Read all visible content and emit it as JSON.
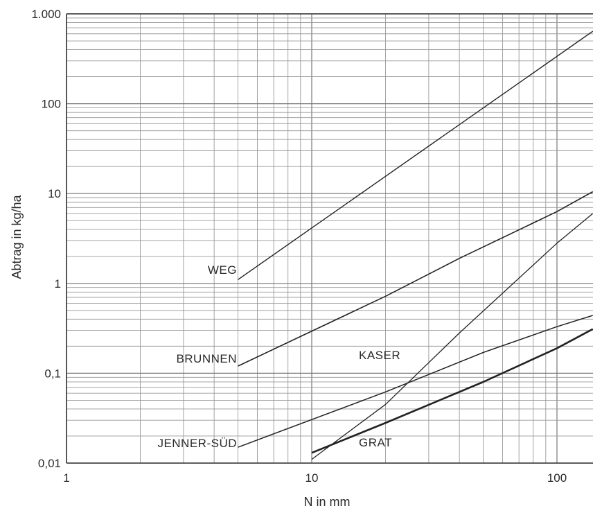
{
  "chart_data": {
    "type": "line",
    "title": "",
    "xlabel": "N in mm",
    "ylabel": "Abtrag in kg/ha",
    "x_scale": "log",
    "y_scale": "log",
    "xlim": [
      1,
      140
    ],
    "ylim": [
      0.01,
      1000
    ],
    "grid": true,
    "legend": "none",
    "x_ticks": [
      {
        "value": 1,
        "label": "1"
      },
      {
        "value": 10,
        "label": "10"
      },
      {
        "value": 100,
        "label": "100"
      }
    ],
    "y_ticks": [
      {
        "value": 0.01,
        "label": "0,01"
      },
      {
        "value": 0.1,
        "label": "0,1"
      },
      {
        "value": 1,
        "label": "1"
      },
      {
        "value": 10,
        "label": "10"
      },
      {
        "value": 100,
        "label": "100"
      },
      {
        "value": 1000,
        "label": "1.000"
      }
    ],
    "series": [
      {
        "name": "WEG",
        "x": [
          5,
          140
        ],
        "y": [
          1.1,
          640
        ]
      },
      {
        "name": "BRUNNEN",
        "x": [
          5,
          20,
          40,
          100,
          140
        ],
        "y": [
          0.12,
          0.72,
          1.9,
          6.3,
          10.5
        ]
      },
      {
        "name": "KASER",
        "x": [
          10,
          20,
          40,
          100,
          140
        ],
        "y": [
          0.011,
          0.045,
          0.28,
          2.8,
          6.0
        ]
      },
      {
        "name": "JENNER-SÜD",
        "x": [
          5,
          20,
          50,
          100,
          140
        ],
        "y": [
          0.015,
          0.062,
          0.17,
          0.33,
          0.44
        ]
      },
      {
        "name": "GRAT",
        "x": [
          10,
          20,
          50,
          100,
          140
        ],
        "y": [
          0.013,
          0.028,
          0.08,
          0.19,
          0.31
        ]
      }
    ]
  }
}
